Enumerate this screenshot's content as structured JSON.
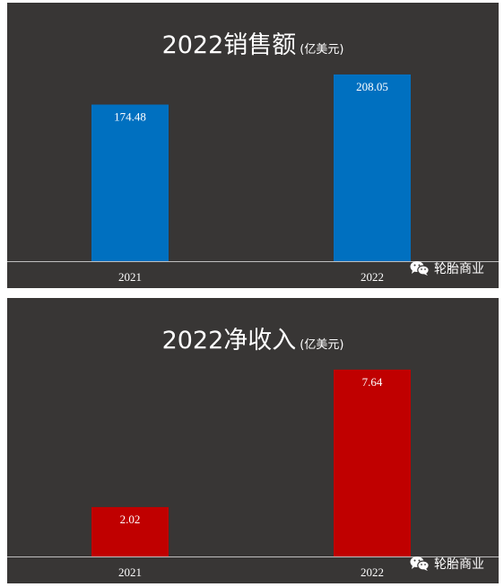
{
  "chart_data": [
    {
      "type": "bar",
      "title": "2022销售额",
      "unit": "(亿美元)",
      "categories": [
        "2021",
        "2022"
      ],
      "values": [
        174.48,
        208.05
      ],
      "value_labels": [
        "174.48",
        "208.05"
      ],
      "ylim": [
        0,
        218
      ],
      "bar_color": "#0070c0",
      "grid": false,
      "legend": "none"
    },
    {
      "type": "bar",
      "title": "2022净收入",
      "unit": "(亿美元)",
      "categories": [
        "2021",
        "2022"
      ],
      "values": [
        2.02,
        7.64
      ],
      "value_labels": [
        "2.02",
        "7.64"
      ],
      "ylim": [
        0,
        8.0
      ],
      "bar_color": "#c00000",
      "grid": false,
      "legend": "none"
    }
  ],
  "watermark": {
    "text": "轮胎商业",
    "icon": "wechat-icon"
  },
  "colors": {
    "background": "#383635",
    "axis": "#bfbfbf",
    "text": "#ffffff"
  }
}
